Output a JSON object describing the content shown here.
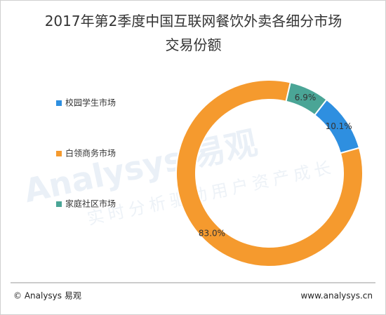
{
  "chart_data": {
    "type": "donut",
    "title": "2017年第2季度中国互联网餐饮外卖各细分市场交易份额",
    "categories": [
      "校园学生市场",
      "白领商务市场",
      "家庭社区市场"
    ],
    "values": [
      10.1,
      83.0,
      6.9
    ],
    "value_labels": [
      "10.1%",
      "83.0%",
      "6.9%"
    ],
    "colors": [
      "#2e8fe0",
      "#f59a2e",
      "#4aa596"
    ],
    "legend": "left"
  },
  "watermark": {
    "brand": "Analysys 易观",
    "slogan": "实时分析驱动用户资产成长"
  },
  "footer": {
    "left": "© Analysys 易观",
    "right": "www.analysys.cn"
  }
}
